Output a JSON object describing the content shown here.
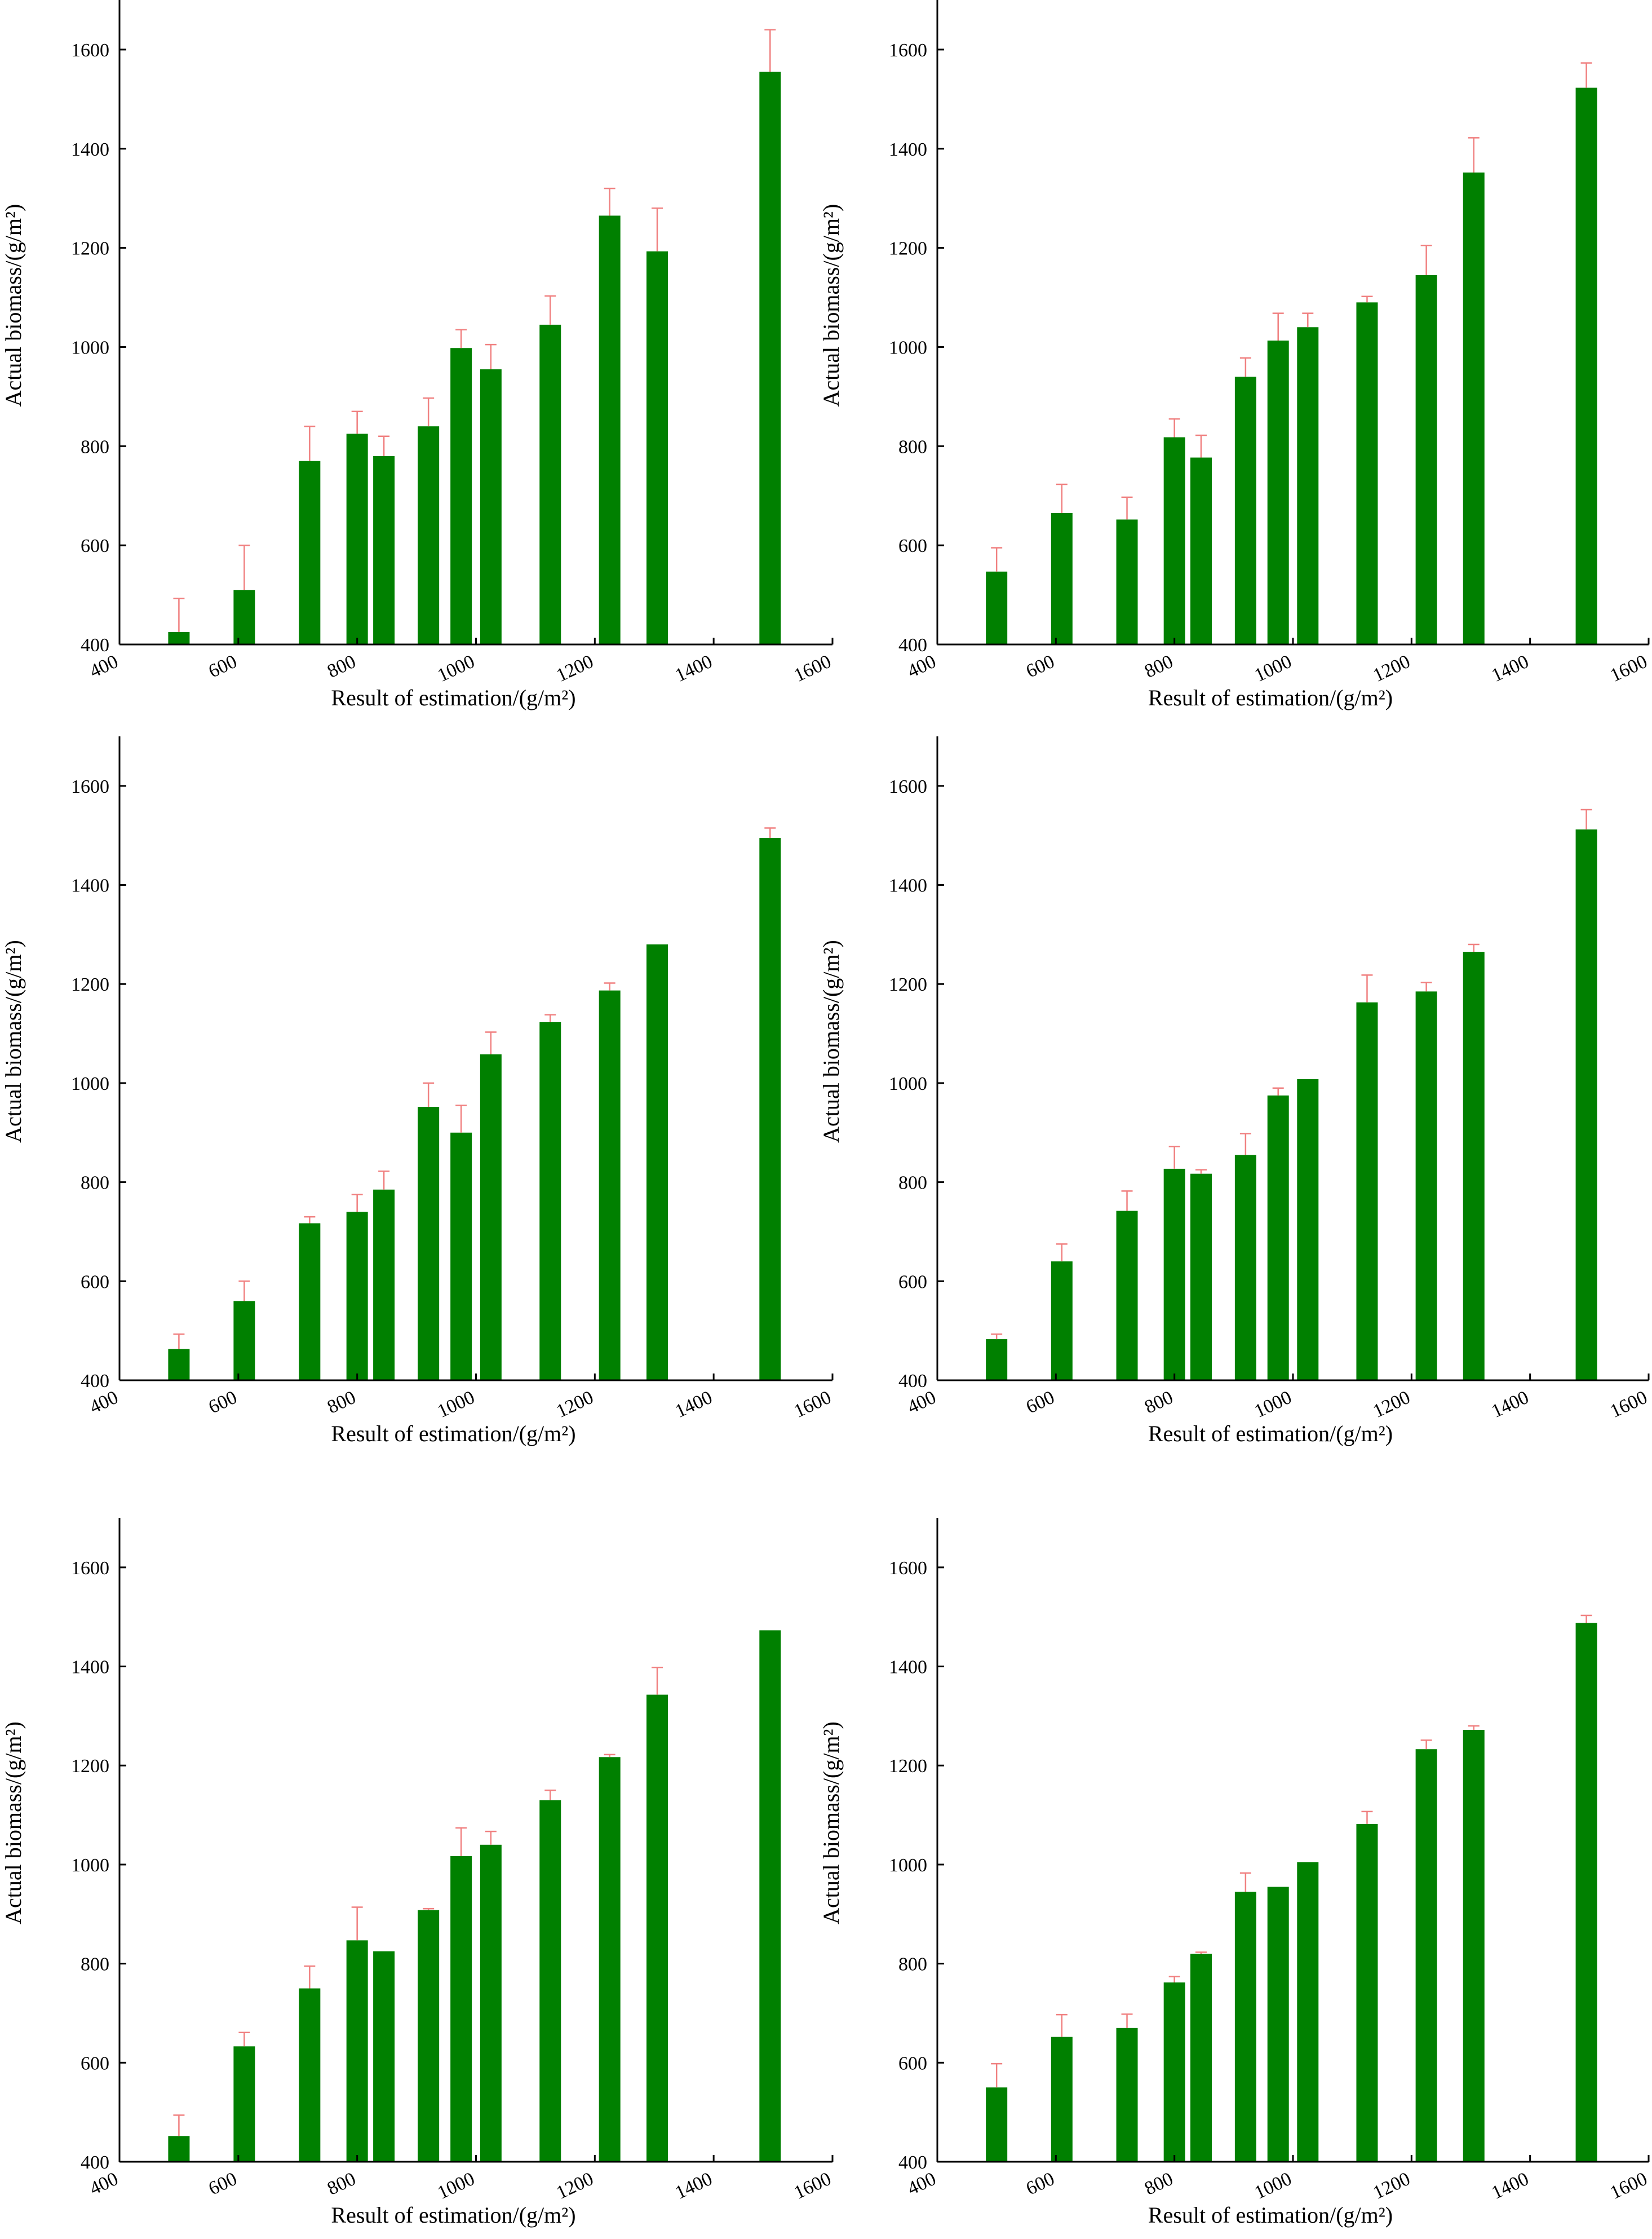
{
  "colors": {
    "bar": "#008000",
    "error_bar": "#f08080",
    "axis": "#000000"
  },
  "chart_data": [
    {
      "type": "bar",
      "xlabel": "Result of estimation/(g/m²)",
      "ylabel": "Actual biomass/(g/m²)",
      "xlim": [
        400,
        1600
      ],
      "ylim": [
        400,
        1700
      ],
      "xticks": [
        400,
        600,
        800,
        1000,
        1200,
        1400,
        1600
      ],
      "yticks": [
        400,
        600,
        800,
        1000,
        1200,
        1400,
        1600
      ],
      "grid": false,
      "x": [
        500,
        610,
        720,
        800,
        845,
        920,
        975,
        1025,
        1125,
        1225,
        1305,
        1495
      ],
      "values": [
        425,
        510,
        770,
        825,
        780,
        840,
        998,
        955,
        1045,
        1265,
        1193,
        1555
      ],
      "errors": [
        68,
        90,
        70,
        45,
        40,
        57,
        37,
        50,
        58,
        55,
        87,
        85
      ]
    },
    {
      "type": "bar",
      "xlabel": "Result of estimation/(g/m²)",
      "ylabel": "Actual biomass/(g/m²)",
      "xlim": [
        400,
        1600
      ],
      "ylim": [
        400,
        1700
      ],
      "xticks": [
        400,
        600,
        800,
        1000,
        1200,
        1400,
        1600
      ],
      "yticks": [
        400,
        600,
        800,
        1000,
        1200,
        1400,
        1600
      ],
      "grid": false,
      "x": [
        500,
        610,
        720,
        800,
        845,
        920,
        975,
        1025,
        1125,
        1225,
        1305,
        1495
      ],
      "values": [
        547,
        665,
        652,
        818,
        777,
        940,
        1013,
        1040,
        1090,
        1145,
        1352,
        1523
      ],
      "errors": [
        48,
        58,
        45,
        37,
        45,
        38,
        55,
        28,
        12,
        60,
        70,
        50
      ]
    },
    {
      "type": "bar",
      "xlabel": "Result of estimation/(g/m²)",
      "ylabel": "Actual biomass/(g/m²)",
      "xlim": [
        400,
        1600
      ],
      "ylim": [
        400,
        1700
      ],
      "xticks": [
        400,
        600,
        800,
        1000,
        1200,
        1400,
        1600
      ],
      "yticks": [
        400,
        600,
        800,
        1000,
        1200,
        1400,
        1600
      ],
      "grid": false,
      "x": [
        500,
        610,
        720,
        800,
        845,
        920,
        975,
        1025,
        1125,
        1225,
        1305,
        1495
      ],
      "values": [
        463,
        560,
        717,
        740,
        785,
        952,
        900,
        1058,
        1123,
        1187,
        1280,
        1495
      ],
      "errors": [
        30,
        40,
        13,
        35,
        37,
        48,
        55,
        45,
        15,
        15,
        0,
        20
      ]
    },
    {
      "type": "bar",
      "xlabel": "Result of estimation/(g/m²)",
      "ylabel": "Actual biomass/(g/m²)",
      "xlim": [
        400,
        1600
      ],
      "ylim": [
        400,
        1700
      ],
      "xticks": [
        400,
        600,
        800,
        1000,
        1200,
        1400,
        1600
      ],
      "yticks": [
        400,
        600,
        800,
        1000,
        1200,
        1400,
        1600
      ],
      "grid": false,
      "x": [
        500,
        610,
        720,
        800,
        845,
        920,
        975,
        1025,
        1125,
        1225,
        1305,
        1495
      ],
      "values": [
        483,
        640,
        742,
        827,
        817,
        855,
        975,
        1008,
        1163,
        1185,
        1265,
        1512
      ],
      "errors": [
        10,
        35,
        40,
        45,
        8,
        43,
        15,
        0,
        55,
        18,
        15,
        40
      ]
    },
    {
      "type": "bar",
      "xlabel": "Result of estimation/(g/m²)",
      "ylabel": "Actual biomass/(g/m²)",
      "xlim": [
        400,
        1600
      ],
      "ylim": [
        400,
        1700
      ],
      "xticks": [
        400,
        600,
        800,
        1000,
        1200,
        1400,
        1600
      ],
      "yticks": [
        400,
        600,
        800,
        1000,
        1200,
        1400,
        1600
      ],
      "grid": false,
      "x": [
        500,
        610,
        720,
        800,
        845,
        920,
        975,
        1025,
        1125,
        1225,
        1305,
        1495
      ],
      "values": [
        452,
        633,
        750,
        847,
        825,
        908,
        1017,
        1040,
        1130,
        1217,
        1343,
        1473
      ],
      "errors": [
        42,
        28,
        45,
        67,
        0,
        3,
        57,
        27,
        20,
        5,
        55,
        0
      ]
    },
    {
      "type": "bar",
      "xlabel": "Result of estimation/(g/m²)",
      "ylabel": "Actual biomass/(g/m²)",
      "xlim": [
        400,
        1600
      ],
      "ylim": [
        400,
        1700
      ],
      "xticks": [
        400,
        600,
        800,
        1000,
        1200,
        1400,
        1600
      ],
      "yticks": [
        400,
        600,
        800,
        1000,
        1200,
        1400,
        1600
      ],
      "grid": false,
      "x": [
        500,
        610,
        720,
        800,
        845,
        920,
        975,
        1025,
        1125,
        1225,
        1305,
        1495
      ],
      "values": [
        550,
        652,
        670,
        762,
        820,
        945,
        955,
        1005,
        1082,
        1233,
        1272,
        1488
      ],
      "errors": [
        48,
        45,
        28,
        12,
        3,
        38,
        0,
        0,
        25,
        18,
        8,
        15
      ]
    }
  ]
}
